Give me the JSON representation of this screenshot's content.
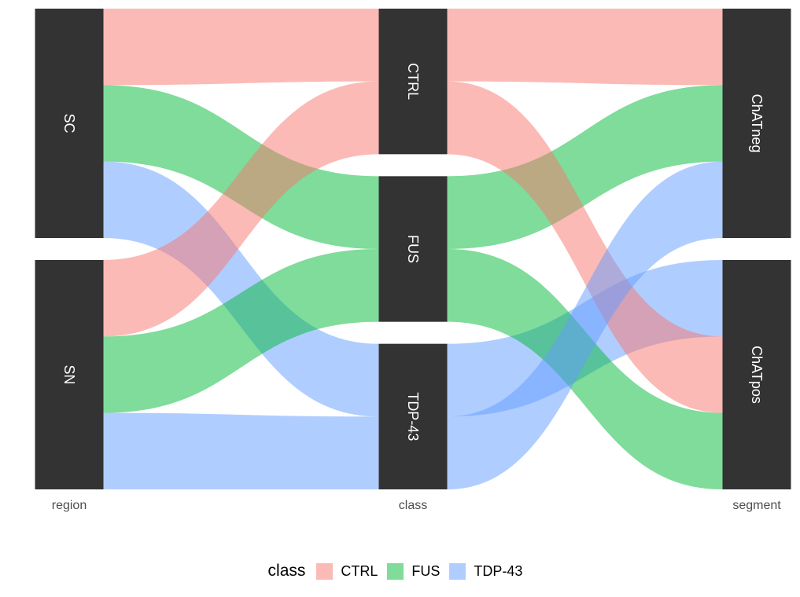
{
  "chart_data": {
    "type": "alluvial",
    "axes": [
      "region",
      "class",
      "segment"
    ],
    "strata": {
      "region": [
        "SC",
        "SN"
      ],
      "class": [
        "CTRL",
        "FUS",
        "TDP-43"
      ],
      "segment": [
        "ChATneg",
        "ChATpos"
      ]
    },
    "flows": [
      {
        "region": "SC",
        "class": "CTRL",
        "segment": "ChATneg",
        "value": 1
      },
      {
        "region": "SC",
        "class": "FUS",
        "segment": "ChATneg",
        "value": 1
      },
      {
        "region": "SC",
        "class": "TDP-43",
        "segment": "ChATpos",
        "value": 1
      },
      {
        "region": "SN",
        "class": "CTRL",
        "segment": "ChATpos",
        "value": 1
      },
      {
        "region": "SN",
        "class": "FUS",
        "segment": "ChATpos",
        "value": 1
      },
      {
        "region": "SN",
        "class": "TDP-43",
        "segment": "ChATneg",
        "value": 1
      }
    ],
    "fill_colors": {
      "CTRL": "#F8766D",
      "FUS": "#00BA38",
      "TDP-43": "#619CFF"
    },
    "legend": {
      "title": "class",
      "position": "bottom",
      "items": [
        {
          "label": "CTRL",
          "color": "#F8766D"
        },
        {
          "label": "FUS",
          "color": "#00BA38"
        },
        {
          "label": "TDP-43",
          "color": "#619CFF"
        }
      ]
    },
    "grid": false
  }
}
